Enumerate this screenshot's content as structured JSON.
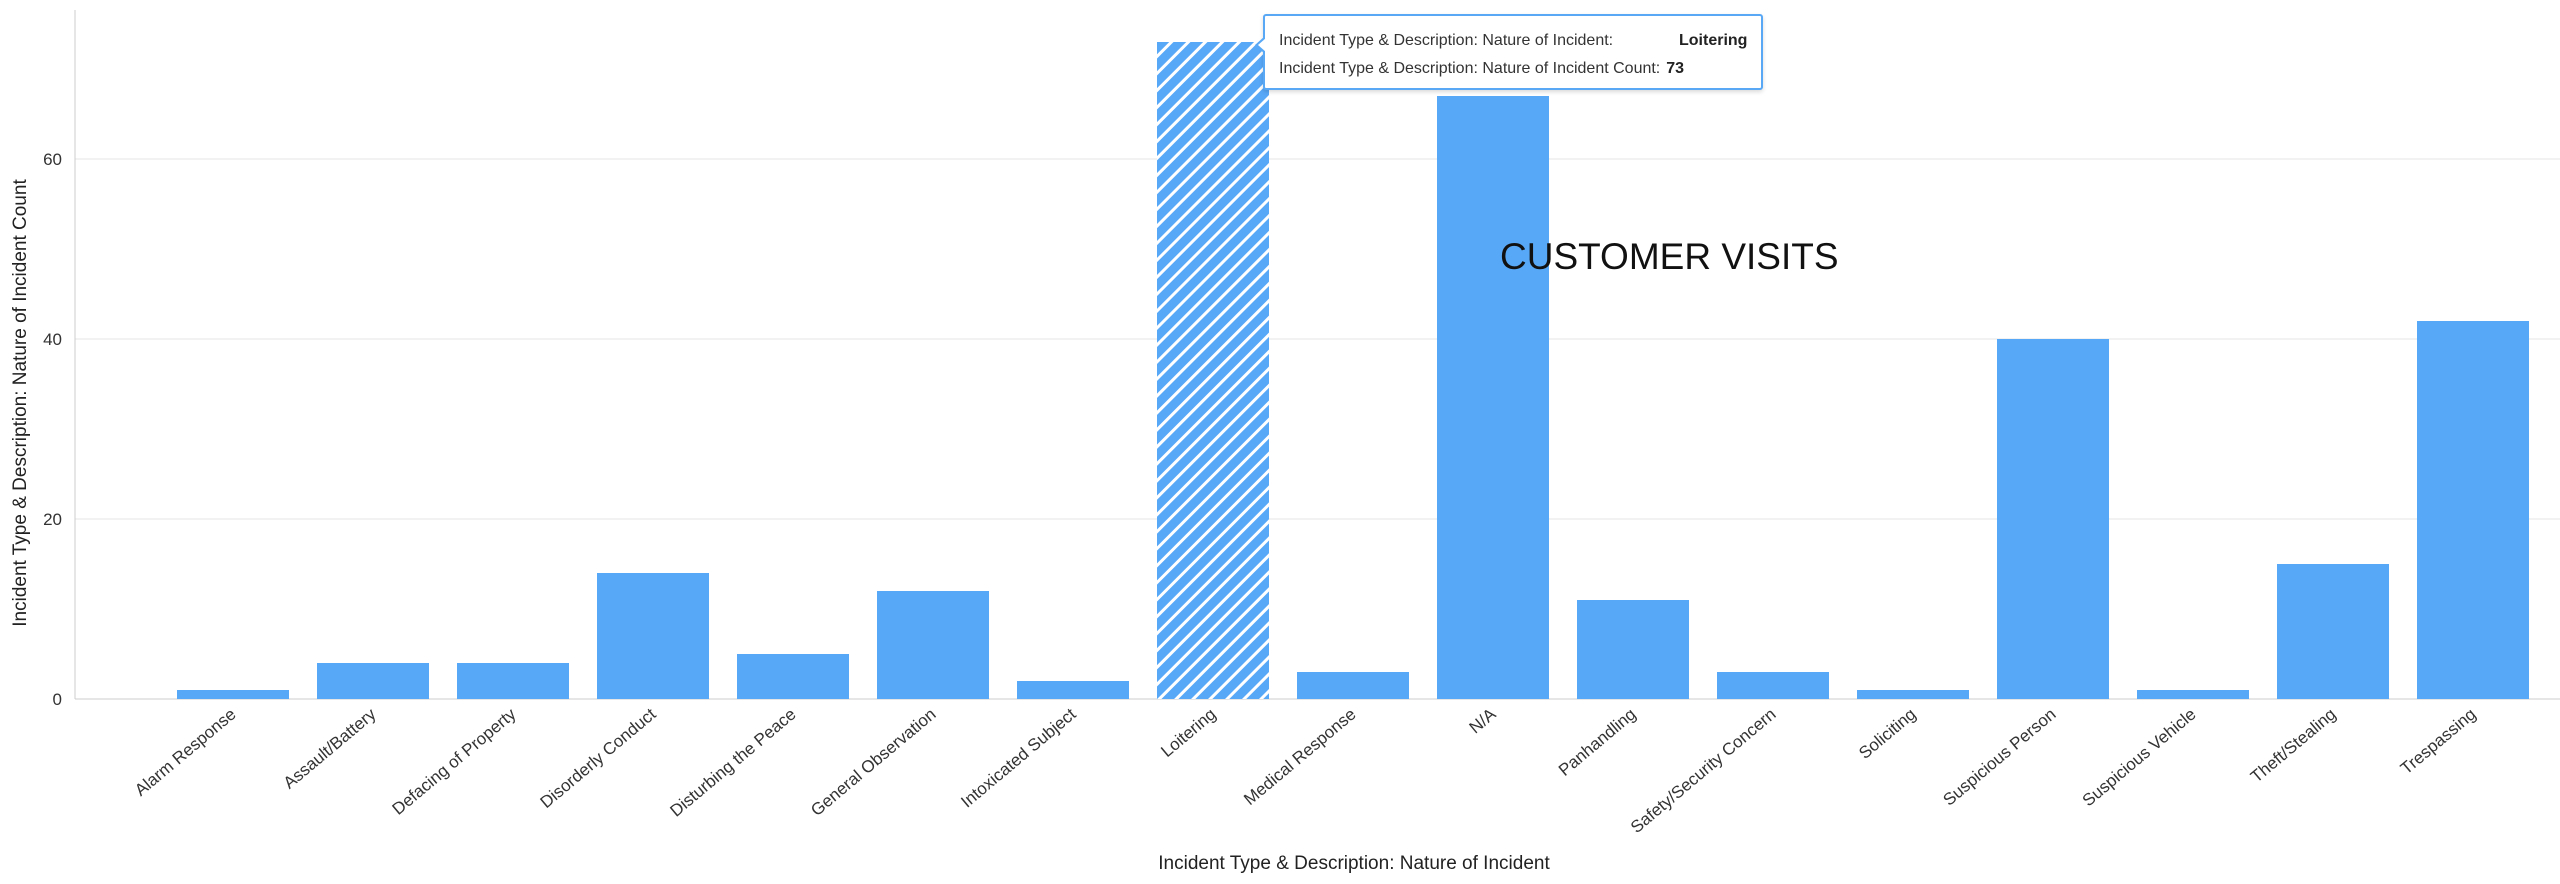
{
  "chart_data": {
    "type": "bar",
    "title": "",
    "xlabel": "Incident Type & Description: Nature of Incident",
    "ylabel": "Incident Type & Description: Nature of Incident Count",
    "ylim": [
      0,
      76
    ],
    "yticks": [
      0,
      20,
      40,
      60
    ],
    "grid": true,
    "legend": "none",
    "bar_color": "#58a8f8",
    "highlighted_category": "Loitering",
    "categories": [
      "Alarm Response",
      "Assault/Battery",
      "Defacing of Property",
      "Disorderly Conduct",
      "Disturbing the Peace",
      "General Observation",
      "Intoxicated Subject",
      "Loitering",
      "Medical Response",
      "N/A",
      "Panhandling",
      "Safety/Security Concern",
      "Soliciting",
      "Suspicious Person",
      "Suspicious Vehicle",
      "Theft/Stealing",
      "Trespassing"
    ],
    "values": [
      1,
      4,
      4,
      14,
      5,
      12,
      2,
      73,
      3,
      67,
      11,
      3,
      1,
      40,
      1,
      15,
      42
    ]
  },
  "watermark": {
    "text": "CUSTOMER VISITS"
  },
  "tooltip": {
    "label_category": "Incident Type & Description: Nature of Incident:",
    "value_category": "Loitering",
    "label_count": "Incident Type & Description: Nature of Incident Count:",
    "value_count": "73",
    "border_color": "#58a8f6"
  }
}
